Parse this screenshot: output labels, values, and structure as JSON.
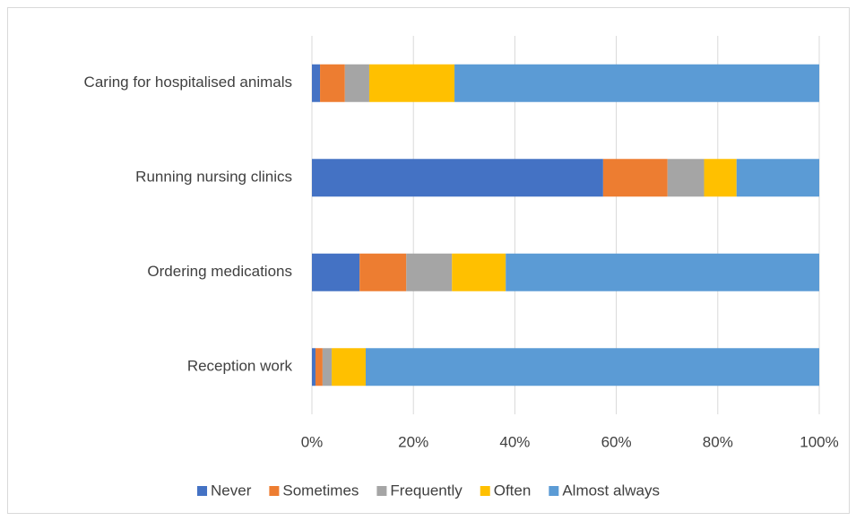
{
  "chart_data": {
    "type": "stacked-barh",
    "categories": [
      "Caring for hospitalised animals",
      "Running nursing clinics",
      "Ordering medications",
      "Reception work"
    ],
    "series": [
      {
        "name": "Never",
        "color": "#4472c4",
        "values": [
          1.6,
          57.4,
          9.4,
          0.7
        ]
      },
      {
        "name": "Sometimes",
        "color": "#ed7d31",
        "values": [
          4.9,
          12.7,
          9.2,
          1.4
        ]
      },
      {
        "name": "Frequently",
        "color": "#a5a5a5",
        "values": [
          4.8,
          7.2,
          9.0,
          1.8
        ]
      },
      {
        "name": "Often",
        "color": "#ffc000",
        "values": [
          16.8,
          6.4,
          10.6,
          6.7
        ]
      },
      {
        "name": "Almost always",
        "color": "#5b9bd5",
        "values": [
          71.9,
          16.3,
          61.8,
          89.4
        ]
      }
    ],
    "xlim": [
      0,
      100
    ],
    "xticks": [
      {
        "value": 0,
        "label": "0%"
      },
      {
        "value": 20,
        "label": "20%"
      },
      {
        "value": 40,
        "label": "40%"
      },
      {
        "value": 60,
        "label": "60%"
      },
      {
        "value": 80,
        "label": "80%"
      },
      {
        "value": 100,
        "label": "100%"
      }
    ],
    "grid": true,
    "legend": "bottom"
  }
}
